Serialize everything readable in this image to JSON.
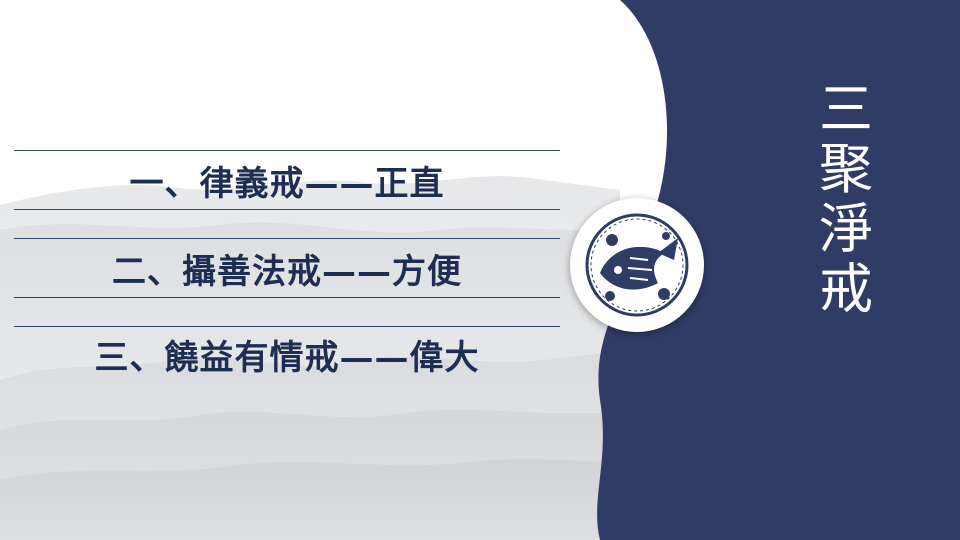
{
  "slide": {
    "items": [
      {
        "label": "一、律義戒——正直"
      },
      {
        "label": "二、攝善法戒——方便"
      },
      {
        "label": "三、饒益有情戒——偉大"
      }
    ],
    "title": "三聚淨戒"
  },
  "colors": {
    "panel": "#2f3d66",
    "text": "#1e2e52",
    "rule": "#33456b",
    "mountains": "#b9bcc0"
  },
  "icons": {
    "medallion": "paper-cut-fish-emblem-icon",
    "background": "ink-wash-mountains"
  }
}
